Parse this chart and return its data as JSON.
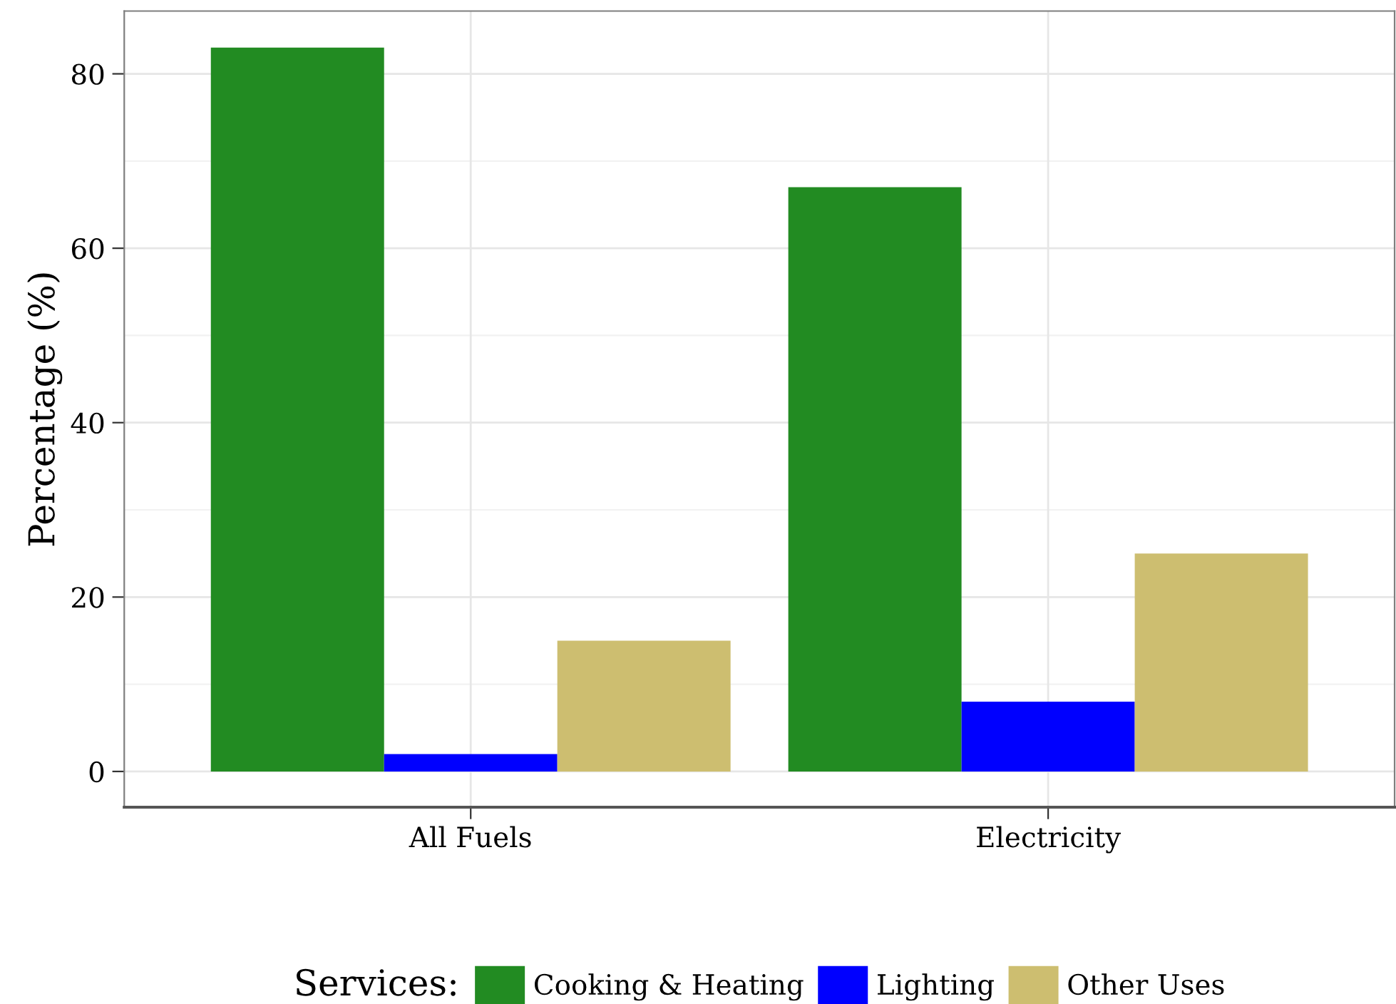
{
  "chart_data": {
    "type": "bar",
    "ylabel": "Percentage (%)",
    "legend_title": "Services:",
    "categories": [
      "All Fuels",
      "Electricity"
    ],
    "series": [
      {
        "name": "Cooking & Heating",
        "color": "#228b22",
        "values": [
          83,
          67
        ]
      },
      {
        "name": "Lighting",
        "color": "#0000ff",
        "values": [
          2,
          8
        ]
      },
      {
        "name": "Other Uses",
        "color": "#cdbe70",
        "values": [
          15,
          25
        ]
      }
    ],
    "ylim": [
      -4.1,
      87.2
    ],
    "yticks": [
      0,
      20,
      40,
      60,
      80
    ],
    "grid": true,
    "legend": "bottom"
  }
}
